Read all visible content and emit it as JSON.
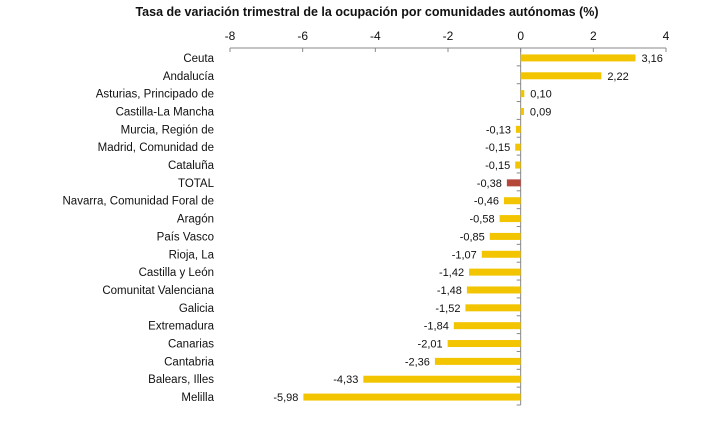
{
  "chart_data": {
    "type": "bar",
    "orientation": "horizontal",
    "title": "Tasa de variación trimestral de la ocupación por comunidades autónomas (%)",
    "xlabel": "",
    "ylabel": "",
    "xlim": [
      -8,
      4
    ],
    "xticks": [
      -8,
      -6,
      -4,
      -2,
      0,
      2,
      4
    ],
    "categories": [
      "Ceuta",
      "Andalucía",
      "Asturias, Principado de",
      "Castilla-La Mancha",
      "Murcia, Región de",
      "Madrid, Comunidad de",
      "Cataluña",
      "TOTAL",
      "Navarra, Comunidad Foral de",
      "Aragón",
      "País Vasco",
      "Rioja, La",
      "Castilla y León",
      "Comunitat Valenciana",
      "Galicia",
      "Extremadura",
      "Canarias",
      "Cantabria",
      "Balears, Illes",
      "Melilla"
    ],
    "values": [
      3.16,
      2.22,
      0.1,
      0.09,
      -0.13,
      -0.15,
      -0.15,
      -0.38,
      -0.46,
      -0.58,
      -0.85,
      -1.07,
      -1.42,
      -1.48,
      -1.52,
      -1.84,
      -2.01,
      -2.36,
      -4.33,
      -5.98
    ],
    "labels": [
      "3,16",
      "2,22",
      "0,10",
      "0,09",
      "-0,13",
      "-0,15",
      "-0,15",
      "-0,38",
      "-0,46",
      "-0,58",
      "-0,85",
      "-1,07",
      "-1,42",
      "-1,48",
      "-1,52",
      "-1,84",
      "-2,01",
      "-2,36",
      "-4,33",
      "-5,98"
    ],
    "colors": {
      "bar": "#f2c500",
      "total": "#b5473a",
      "axis": "#888888"
    },
    "highlight": "TOTAL",
    "grid": false
  }
}
